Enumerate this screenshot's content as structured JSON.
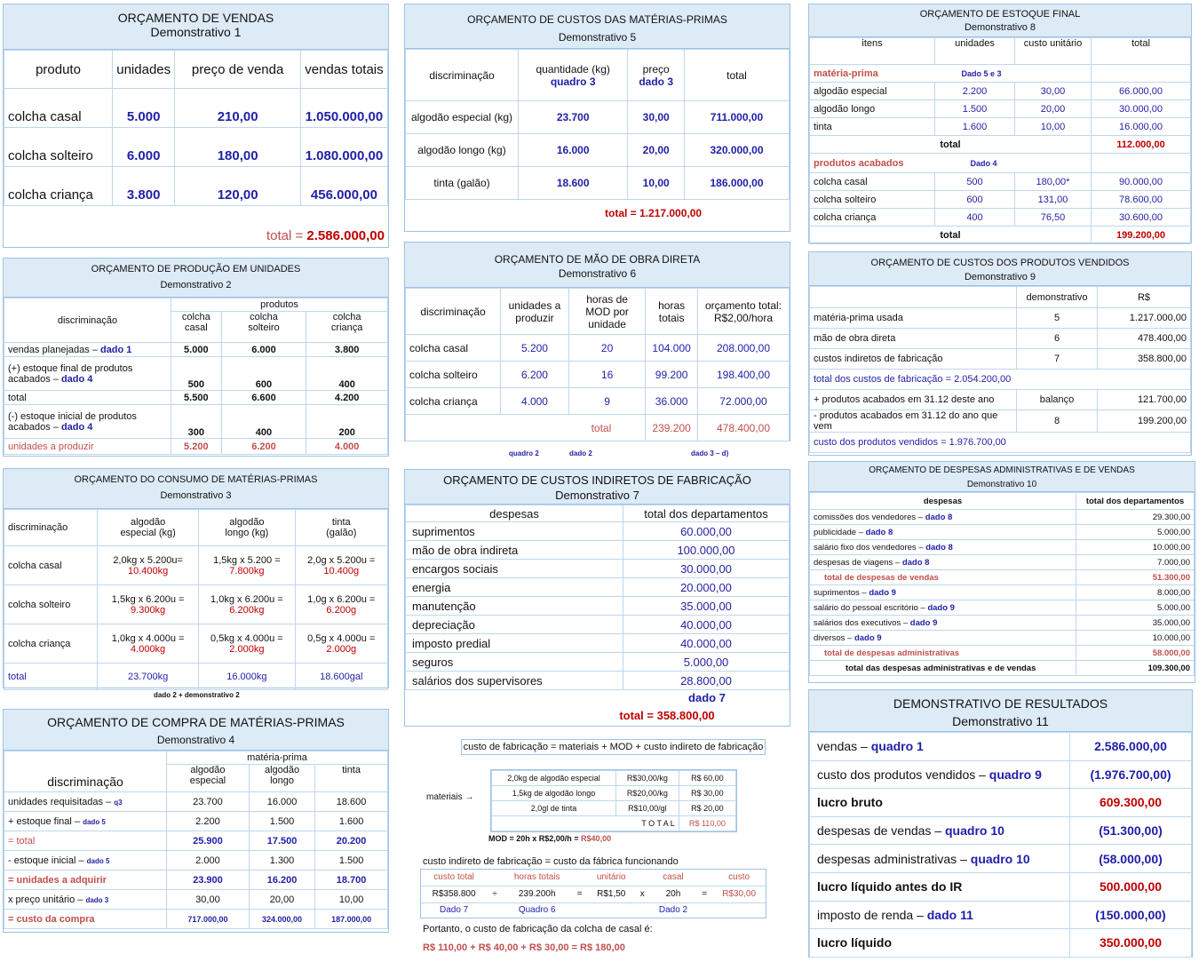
{
  "d1": {
    "title": "ORÇAMENTO DE VENDAS",
    "sub": "Demonstrativo 1",
    "h": [
      "produto",
      "unidades",
      "preço de venda",
      "vendas totais"
    ],
    "rows": [
      [
        "colcha casal",
        "5.000",
        "210,00",
        "1.050.000,00"
      ],
      [
        "colcha solteiro",
        "6.000",
        "180,00",
        "1.080.000,00"
      ],
      [
        "colcha criança",
        "3.800",
        "120,00",
        "456.000,00"
      ]
    ],
    "total_label": "total  =",
    "total": "2.586.000,00"
  },
  "d2": {
    "title": "ORÇAMENTO DE PRODUÇÃO EM UNIDADES",
    "sub": "Demonstrativo 2",
    "h0": "discriminação",
    "hp": "produtos",
    "hc": [
      "colcha casal",
      "colcha solteiro",
      "colcha criança"
    ],
    "r1": [
      "vendas planejadas – ",
      "dado 1",
      "5.000",
      "6.000",
      "3.800"
    ],
    "r2": [
      "(+) estoque final de produtos acabados – ",
      "dado 4",
      "500",
      "600",
      "400"
    ],
    "r3": [
      "total",
      "5.500",
      "6.600",
      "4.200"
    ],
    "r4": [
      "(-) estoque inicial de produtos acabados – ",
      "dado 4",
      "300",
      "400",
      "200"
    ],
    "r5": [
      "unidades a produzir",
      "5.200",
      "6.200",
      "4.000"
    ]
  },
  "d3": {
    "title": "ORÇAMENTO DO CONSUMO DE MATÉRIAS-PRIMAS",
    "sub": "Demonstrativo 3",
    "h": [
      "discriminação",
      "algodão especial (kg)",
      "algodão longo (kg)",
      "tinta (galão)"
    ],
    "rows": [
      [
        "colcha  casal",
        "2,0kg x 5.200u=",
        "10.400kg",
        "1,5kg x 5.200  =",
        "7.800kg",
        "2,0g x 5.200u =",
        "10.400g"
      ],
      [
        "colcha solteiro",
        "1,5kg x 6.200u =",
        "9.300kg",
        "1,0kg x 6.200u =",
        "6.200kg",
        "1,0g x 6.200u =",
        "6.200g"
      ],
      [
        "colcha criança",
        "1,0kg x 4.000u =",
        "4.000kg",
        "0,5kg x 4.000u =",
        "2.000kg",
        "0,5g x 4.000u =",
        "2.000g"
      ]
    ],
    "total": [
      "total",
      "23.700kg",
      "16.000kg",
      "18.600gal"
    ],
    "note": "dado 2 + demonstrativo 2"
  },
  "d4": {
    "title": "ORÇAMENTO DE COMPRA DE MATÉRIAS-PRIMAS",
    "sub": "Demonstrativo 4",
    "h0": "discriminação",
    "hm": "matéria-prima",
    "hc": [
      "algodão especial",
      "algodão longo",
      "tinta"
    ],
    "rows": [
      [
        "unidades requisitadas – ",
        "q3",
        "23.700",
        "16.000",
        "18.600"
      ],
      [
        "+ estoque final – ",
        "dado 5",
        "2.200",
        "1.500",
        "1.600"
      ],
      [
        "=  total",
        "",
        "25.900",
        "17.500",
        "20.200"
      ],
      [
        "- estoque inicial – ",
        "dado 5",
        "2.000",
        "1.300",
        "1.500"
      ],
      [
        "= unidades a adquirir",
        "",
        "23.900",
        "16.200",
        "18.700"
      ],
      [
        "x  preço unitário – ",
        "dado 3",
        "30,00",
        "20,00",
        "10,00"
      ],
      [
        "= custo da compra",
        "",
        "717.000,00",
        "324.000,00",
        "187.000,00"
      ]
    ]
  },
  "d5": {
    "title": "ORÇAMENTO DE CUSTOS DAS MATÉRIAS-PRIMAS",
    "sub": "Demonstrativo 5",
    "h": [
      "discriminação",
      "quantidade (kg)",
      "quadro 3",
      "preço",
      "dado 3",
      "total"
    ],
    "rows": [
      [
        "algodão especial (kg)",
        "23.700",
        "30,00",
        "711.000,00"
      ],
      [
        "algodão longo (kg)",
        "16.000",
        "20,00",
        "320.000,00"
      ],
      [
        "tinta (galão)",
        "18.600",
        "10,00",
        "186.000,00"
      ]
    ],
    "total": "total   =    1.217.000,00"
  },
  "d6": {
    "title": "ORÇAMENTO DE MÃO DE OBRA DIRETA",
    "sub": "Demonstrativo 6",
    "h": [
      "discriminação",
      "unidades a produzir",
      "horas de MOD por unidade",
      "horas totais",
      "orçamento total: R$2,00/hora"
    ],
    "rows": [
      [
        "colcha casal",
        "5.200",
        "20",
        "104.000",
        "208.000,00"
      ],
      [
        "colcha solteiro",
        "6.200",
        "16",
        "99.200",
        "198.400,00"
      ],
      [
        "colcha criança",
        "4.000",
        "9",
        "36.000",
        "72.000,00"
      ]
    ],
    "total": [
      "total",
      "239.200",
      "478.400,00"
    ],
    "notes": [
      "quadro 2",
      "dado 2",
      "dado 3 – d)"
    ]
  },
  "d7": {
    "title": "ORÇAMENTO DE CUSTOS INDIRETOS DE FABRICAÇÃO",
    "sub": "Demonstrativo 7",
    "h": [
      "despesas",
      "total dos departamentos"
    ],
    "rows": [
      [
        "suprimentos",
        "60.000,00"
      ],
      [
        "mão de obra indireta",
        "100.000,00"
      ],
      [
        "encargos sociais",
        "30.000,00"
      ],
      [
        "energia",
        "20.000,00"
      ],
      [
        "manutenção",
        "35.000,00"
      ],
      [
        "depreciação",
        "40.000,00"
      ],
      [
        "imposto predial",
        "40.000,00"
      ],
      [
        "seguros",
        "5.000,00"
      ],
      [
        "salários dos supervisores",
        "28.800,00"
      ]
    ],
    "dado": "dado 7",
    "total": "total = 358.800,00"
  },
  "calc": {
    "formula": "custo de fabricação =  materiais + MOD + custo indireto de fabricação",
    "mat_label": "materiais →",
    "mat": [
      [
        "2,0kg de algodão especial",
        "R$30,00/kg",
        "R$  60,00"
      ],
      [
        "1,5kg de algodão longo",
        "R$20,00/kg",
        "R$  30,00"
      ],
      [
        "2,0gl de tinta",
        "R$10,00/gl",
        "R$  20,00"
      ]
    ],
    "mat_total": [
      "T  O  T  A  L",
      "R$ 110,00"
    ],
    "mod": "MOD = 20h x R$2,00/h = ",
    "mod_v": "R$40,00",
    "cif_title": "custo indireto de fabricação = custo da fábrica funcionando",
    "cif_h": [
      "custo total",
      "horas totais",
      "unitário",
      "casal",
      "custo"
    ],
    "cif_r": [
      "R$358.800",
      "÷",
      "239.200h",
      "=",
      "R$1,50",
      "x",
      "20h",
      "=",
      "R$30,00"
    ],
    "cif_n": [
      "Dado 7",
      "Quadro 6",
      "Dado 2"
    ],
    "port": "Portanto, o custo de fabricação da colcha de casal é:",
    "final": "R$ 110,00 + R$ 40,00 + R$ 30,00 = R$ 180,00"
  },
  "d8": {
    "title": "ORÇAMENTO DE ESTOQUE FINAL",
    "sub": "Demonstrativo 8",
    "h": [
      "itens",
      "unidades",
      "custo unitário",
      "total"
    ],
    "mp": "matéria-prima",
    "mp_n": "Dado 5 e 3",
    "mp_rows": [
      [
        "algodão especial",
        "2.200",
        "30,00",
        "66.000,00"
      ],
      [
        "algodão longo",
        "1.500",
        "20,00",
        "30.000,00"
      ],
      [
        "tinta",
        "1.600",
        "10,00",
        "16.000,00"
      ]
    ],
    "t1": [
      "total",
      "112.000,00"
    ],
    "pa": "produtos acabados",
    "pa_n": "Dado 4",
    "pa_rows": [
      [
        "colcha casal",
        "500",
        "180,00*",
        "90.000,00"
      ],
      [
        "colcha solteiro",
        "600",
        "131,00",
        "78.600,00"
      ],
      [
        "colcha criança",
        "400",
        "76,50",
        "30.600,00"
      ]
    ],
    "t2": [
      "total",
      "199.200,00"
    ]
  },
  "d9": {
    "title": "ORÇAMENTO DE CUSTOS DOS PRODUTOS VENDIDOS",
    "sub": "Demonstrativo 9",
    "h": [
      "",
      "demonstrativo",
      "R$"
    ],
    "rows": [
      [
        "matéria-prima usada",
        "5",
        "1.217.000,00"
      ],
      [
        "mão de obra direta",
        "6",
        "478.400,00"
      ],
      [
        "custos indiretos de fabricação",
        "7",
        "358.800,00"
      ]
    ],
    "tf": "total dos custos de fabricação = 2.054.200,00",
    "r4": [
      "+ produtos acabados em 31.12 deste ano",
      "balanço",
      "121.700,00"
    ],
    "r5": [
      "- produtos acabados em 31.12 do ano que vem",
      "8",
      "199.200,00"
    ],
    "cpv": "custo dos produtos vendidos  = 1.976.700,00"
  },
  "d10": {
    "title": "ORÇAMENTO DE DESPESAS ADMINISTRATIVAS E DE VENDAS",
    "sub": "Demonstrativo 10",
    "h": [
      "despesas",
      "total dos departamentos"
    ],
    "rows": [
      [
        "comissões  dos vendedores – ",
        "dado 8",
        "29.300,00"
      ],
      [
        "publicidade – ",
        "dado 8",
        "5.000,00"
      ],
      [
        "salário fixo dos vendedores – ",
        "dado 8",
        "10.000,00"
      ],
      [
        "despesas de viagens – ",
        "dado 8",
        "7.000,00"
      ]
    ],
    "tv": [
      "total de despesas de vendas",
      "51.300,00"
    ],
    "rows2": [
      [
        "suprimentos – ",
        "dado 9",
        "8.000,00"
      ],
      [
        "salário do pessoal escritório – ",
        "dado 9",
        "5.000,00"
      ],
      [
        "salários dos executivos – ",
        "dado 9",
        "35.000,00"
      ],
      [
        "diversos – ",
        "dado 9",
        "10.000,00"
      ]
    ],
    "ta": [
      "total de despesas administrativas",
      "58.000,00"
    ],
    "tt": [
      "total das despesas administrativas e de vendas",
      "109.300,00"
    ]
  },
  "d11": {
    "title": "DEMONSTRATIVO DE RESULTADOS",
    "sub": "Demonstrativo 11",
    "rows": [
      [
        "vendas – ",
        "quadro 1",
        "2.586.000,00",
        "n"
      ],
      [
        "custo dos produtos vendidos – ",
        "quadro 9",
        "(1.976.700,00)",
        "n"
      ],
      [
        "lucro bruto",
        "",
        "609.300,00",
        "b"
      ],
      [
        "despesas de vendas – ",
        "quadro 10",
        "(51.300,00)",
        "n"
      ],
      [
        "despesas administrativas – ",
        "quadro 10",
        "(58.000,00)",
        "n"
      ],
      [
        "lucro líquido antes do IR",
        "",
        "500.000,00",
        "b"
      ],
      [
        "imposto de renda – ",
        "dado 11",
        "(150.000,00)",
        "n"
      ],
      [
        "lucro líquido",
        "",
        "350.000,00",
        "b"
      ]
    ]
  }
}
